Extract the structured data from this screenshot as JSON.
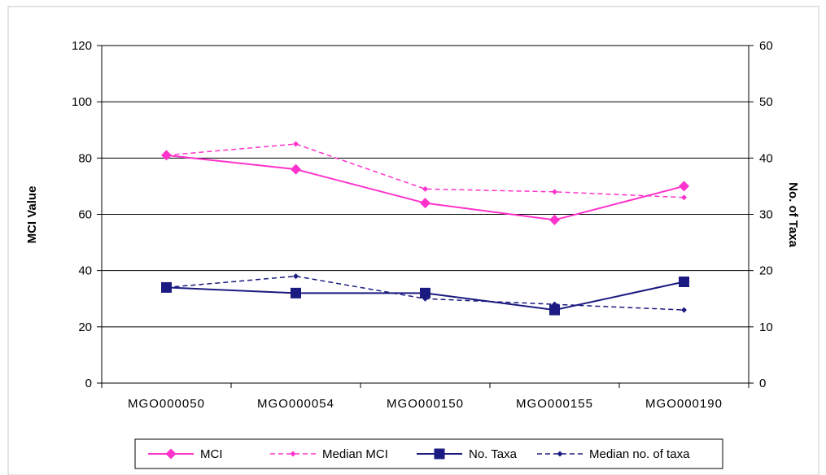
{
  "chart_data": {
    "type": "line",
    "categories": [
      "MGO000050",
      "MGO000054",
      "MGO000150",
      "MGO000155",
      "MGO000190"
    ],
    "ylabel": "MCI Value",
    "y2label": "No. of Taxa",
    "ylim": [
      0,
      120
    ],
    "y2lim": [
      0,
      60
    ],
    "yticks": [
      0,
      20,
      40,
      60,
      80,
      100,
      120
    ],
    "y2ticks": [
      0,
      10,
      20,
      30,
      40,
      50,
      60
    ],
    "grid": true,
    "legend_position": "bottom",
    "series": [
      {
        "name": "MCI",
        "axis": "left",
        "values": [
          81,
          76,
          64,
          58,
          70
        ],
        "color": "#ff33cc",
        "dash": "solid",
        "marker": "diamond"
      },
      {
        "name": "Median MCI",
        "axis": "left",
        "values": [
          81,
          85,
          69,
          68,
          66
        ],
        "color": "#ff33cc",
        "dash": "dashed",
        "marker": "small-diamond"
      },
      {
        "name": "No. Taxa",
        "axis": "right",
        "values": [
          17,
          16,
          16,
          13,
          18
        ],
        "color": "#1a1a80",
        "dash": "solid",
        "marker": "square"
      },
      {
        "name": "Median no. of taxa",
        "axis": "right",
        "values": [
          17,
          19,
          15,
          14,
          13
        ],
        "color": "#1a1a80",
        "dash": "dashed",
        "marker": "small-diamond"
      }
    ]
  }
}
